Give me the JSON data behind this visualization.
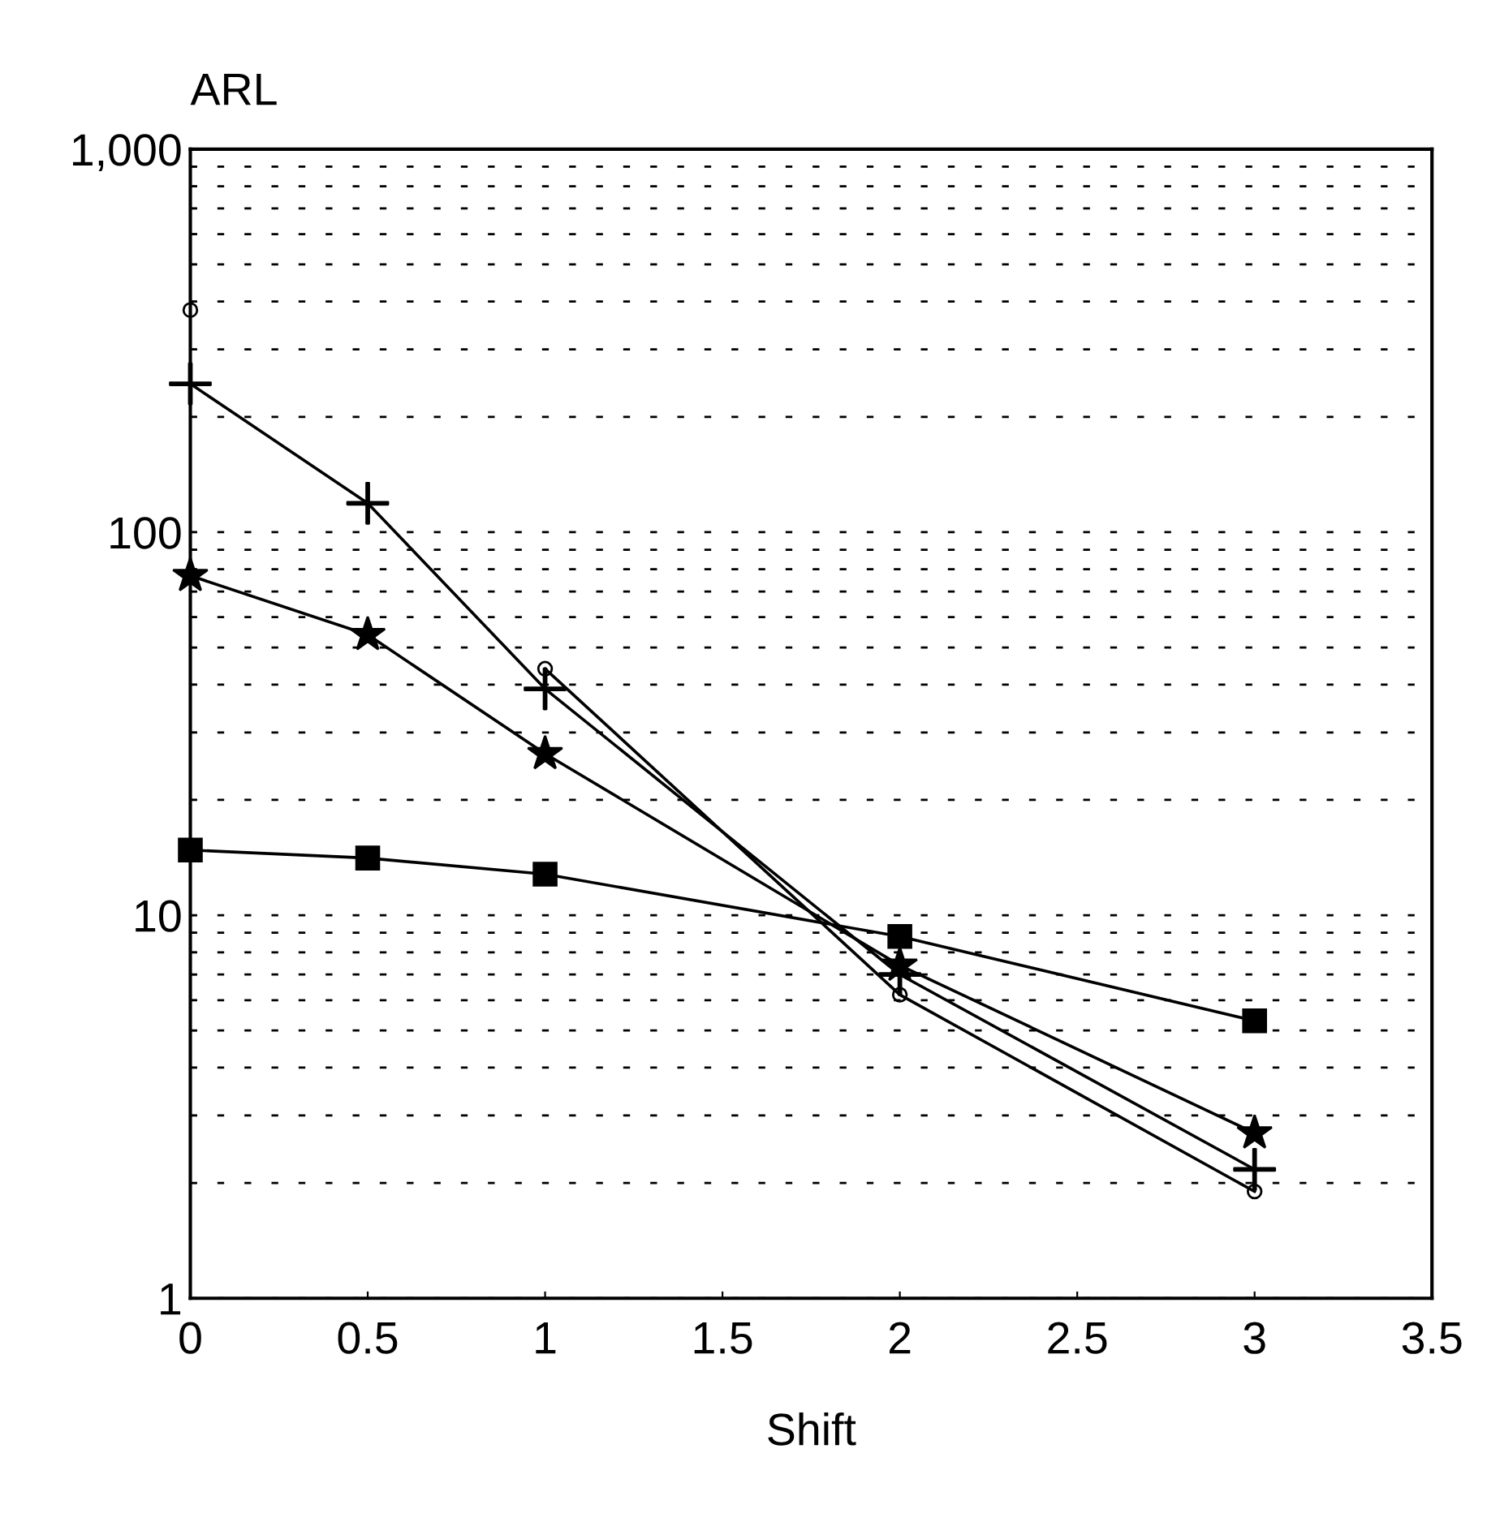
{
  "chart_data": {
    "type": "line",
    "xlabel": "Shift",
    "ylabel": "ARL",
    "x": [
      0,
      0.5,
      1,
      2,
      3
    ],
    "series": [
      {
        "color": "#000000",
        "marker": "circle",
        "values": [
          380,
          null,
          44,
          6.2,
          1.9
        ]
      },
      {
        "color": "#000000",
        "marker": "cross",
        "values": [
          244,
          119,
          39,
          7.0,
          2.17
        ]
      },
      {
        "color": "#000000",
        "marker": "star",
        "values": [
          77,
          54,
          26.4,
          7.4,
          2.7
        ]
      },
      {
        "color": "#000000",
        "marker": "square",
        "values": [
          14.8,
          14.1,
          12.8,
          8.8,
          5.3
        ]
      }
    ],
    "log": "y",
    "xlim": [
      0,
      3.5
    ],
    "xticks": [
      0,
      0.5,
      1,
      1.5,
      2,
      2.5,
      3,
      3.5
    ],
    "ylim": [
      1,
      1000
    ],
    "yticks": [
      1,
      {
        "value": 2,
        "label": null
      },
      {
        "value": 3,
        "label": null
      },
      {
        "value": 4,
        "label": null
      },
      {
        "value": 5,
        "label": null
      },
      {
        "value": 6,
        "label": null
      },
      {
        "value": 7,
        "label": null
      },
      {
        "value": 8,
        "label": null
      },
      {
        "value": 9,
        "label": null
      },
      10,
      {
        "value": 20,
        "label": null
      },
      {
        "value": 30,
        "label": null
      },
      {
        "value": 40,
        "label": null
      },
      {
        "value": 50,
        "label": null
      },
      {
        "value": 60,
        "label": null
      },
      {
        "value": 70,
        "label": null
      },
      {
        "value": 80,
        "label": null
      },
      {
        "value": 90,
        "label": null
      },
      100,
      {
        "value": 200,
        "label": null
      },
      {
        "value": 300,
        "label": null
      },
      {
        "value": 400,
        "label": null
      },
      {
        "value": 500,
        "label": null
      },
      {
        "value": 600,
        "label": null
      },
      {
        "value": 700,
        "label": null
      },
      {
        "value": 800,
        "label": null
      },
      {
        "value": 900,
        "label": null
      },
      {
        "value": 1000,
        "label": "1,000"
      }
    ],
    "grid": "y",
    "legend": false,
    "line_style": "solid"
  }
}
